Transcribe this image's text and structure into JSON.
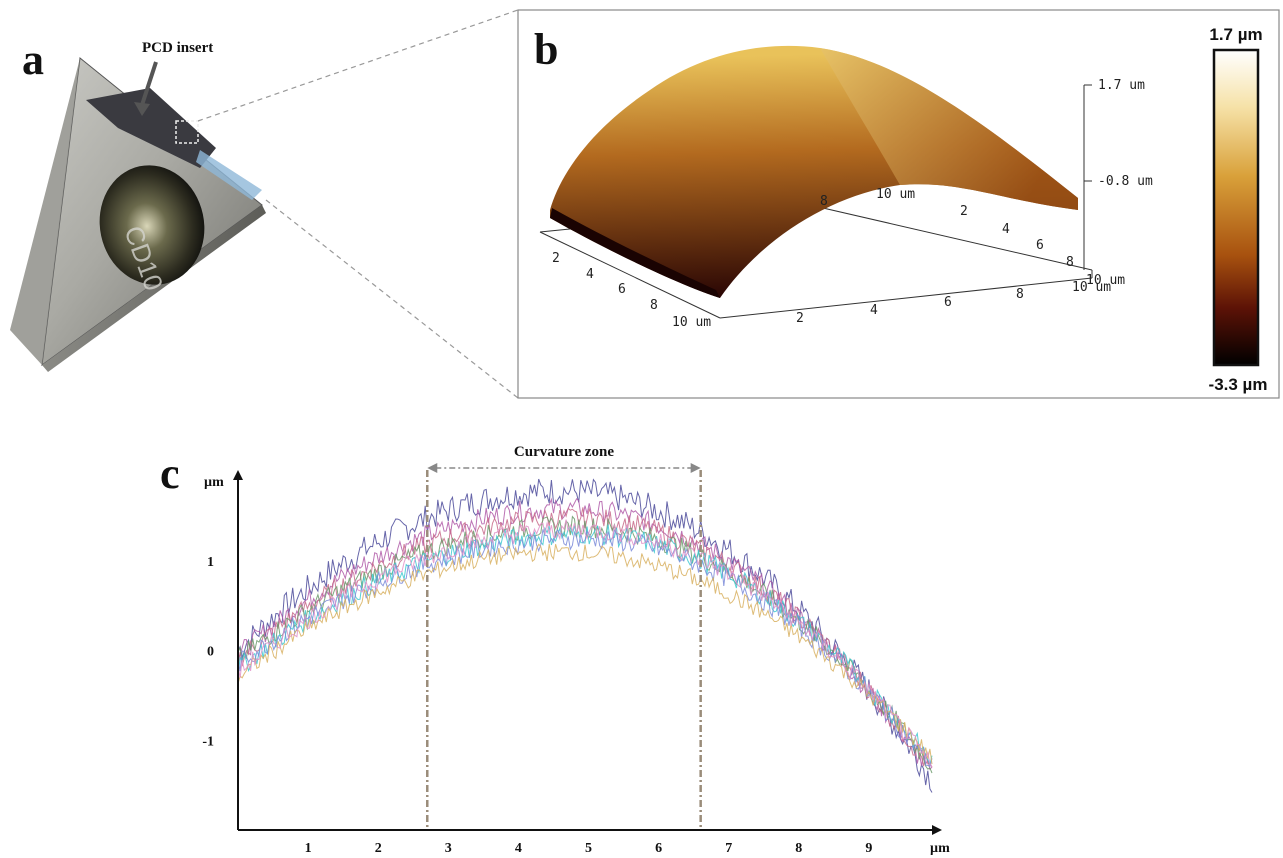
{
  "panels": {
    "a": {
      "letter": "a",
      "callout": "PCD insert",
      "engraving": "CD10"
    },
    "b": {
      "letter": "b",
      "z_ticks": [
        "1.7 um",
        "-0.8 um"
      ],
      "x_ticks": [
        "2",
        "4",
        "6",
        "8",
        "10 um"
      ],
      "y_ticks": [
        "2",
        "4",
        "6",
        "8",
        "10 um"
      ],
      "back_ticks": [
        "2",
        "4",
        "6",
        "8",
        "10 um"
      ],
      "back_left_ticks": [
        "8",
        "10 um"
      ],
      "colorbar": {
        "max_label": "1.7 µm",
        "min_label": "-3.3 µm",
        "colors": [
          "#ffffff",
          "#f6e2a8",
          "#d9a13a",
          "#a8520f",
          "#5c1206",
          "#000000"
        ]
      },
      "surface_colors": {
        "top": "#e9c25a",
        "mid": "#b36a1f",
        "bottom": "#2a0604"
      }
    },
    "c": {
      "letter": "c",
      "zone_label": "Curvature zone"
    }
  },
  "chart_data": {
    "type": "line",
    "x_unit": "µm",
    "y_unit": "µm",
    "x_ticks": [
      "1",
      "2",
      "3",
      "4",
      "5",
      "6",
      "7",
      "8",
      "9"
    ],
    "y_ticks": [
      "1",
      "0",
      "-1"
    ],
    "xlim": [
      0,
      9.9
    ],
    "ylim": [
      -2.0,
      1.9
    ],
    "curvature_zone": [
      2.7,
      6.6
    ],
    "series": [
      {
        "color": "#4b4a9a",
        "peak_x": 4.6,
        "peak_y": 1.78,
        "start_y": 0.0,
        "end_y": -1.45,
        "noise": 0.16
      },
      {
        "color": "#b05aa8",
        "peak_x": 4.7,
        "peak_y": 1.58,
        "start_y": -0.05,
        "end_y": -1.4,
        "noise": 0.12
      },
      {
        "color": "#c86a8a",
        "peak_x": 4.8,
        "peak_y": 1.48,
        "start_y": -0.1,
        "end_y": -1.35,
        "noise": 0.12
      },
      {
        "color": "#6a9a6a",
        "peak_x": 4.8,
        "peak_y": 1.38,
        "start_y": -0.1,
        "end_y": -1.3,
        "noise": 0.12
      },
      {
        "color": "#3cc8d0",
        "peak_x": 4.9,
        "peak_y": 1.3,
        "start_y": -0.2,
        "end_y": -1.25,
        "noise": 0.12
      },
      {
        "color": "#7a8ad8",
        "peak_x": 4.9,
        "peak_y": 1.25,
        "start_y": -0.15,
        "end_y": -1.3,
        "noise": 0.12
      },
      {
        "color": "#d8b060",
        "peak_x": 4.6,
        "peak_y": 1.1,
        "start_y": -0.3,
        "end_y": -1.2,
        "noise": 0.1
      },
      {
        "color": "#e090c8",
        "peak_x": 4.8,
        "peak_y": 1.35,
        "start_y": -0.25,
        "end_y": -1.3,
        "noise": 0.11
      }
    ]
  }
}
